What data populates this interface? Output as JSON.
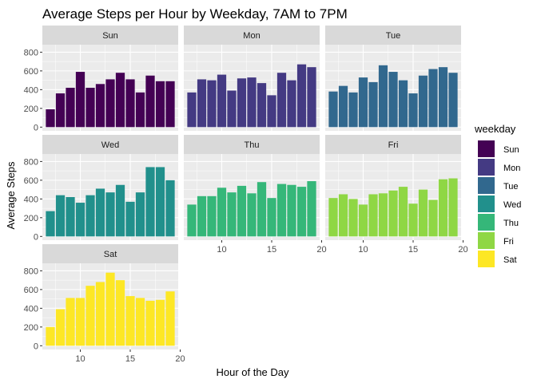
{
  "chart_data": {
    "type": "bar",
    "title": "Average Steps per Hour by Weekday, 7AM to 7PM",
    "xlabel": "Hour of the Day",
    "ylabel": "Average Steps",
    "xlim": [
      6.2,
      19.8
    ],
    "ylim": [
      -40,
      880
    ],
    "x_ticks": [
      10,
      15,
      20
    ],
    "y_ticks": [
      0,
      200,
      400,
      600,
      800
    ],
    "grid": true,
    "legend_position": "right",
    "legend_title": "weekday",
    "hours": [
      7,
      8,
      9,
      10,
      11,
      12,
      13,
      14,
      15,
      16,
      17,
      18,
      19
    ],
    "panels": [
      {
        "name": "Sun",
        "color": "#440154",
        "values": [
          190,
          360,
          420,
          590,
          420,
          460,
          510,
          580,
          510,
          370,
          550,
          490,
          490
        ]
      },
      {
        "name": "Mon",
        "color": "#443A83",
        "values": [
          370,
          510,
          500,
          560,
          390,
          520,
          530,
          470,
          340,
          580,
          500,
          670,
          640
        ]
      },
      {
        "name": "Tue",
        "color": "#31688E",
        "values": [
          380,
          440,
          370,
          530,
          480,
          660,
          590,
          500,
          360,
          550,
          620,
          640,
          580
        ]
      },
      {
        "name": "Wed",
        "color": "#21908C",
        "values": [
          270,
          440,
          420,
          360,
          440,
          510,
          470,
          550,
          370,
          470,
          740,
          740,
          600
        ]
      },
      {
        "name": "Thu",
        "color": "#35B779",
        "values": [
          340,
          430,
          430,
          520,
          470,
          540,
          460,
          580,
          410,
          560,
          550,
          530,
          590
        ]
      },
      {
        "name": "Fri",
        "color": "#8FD744",
        "values": [
          410,
          450,
          400,
          340,
          450,
          460,
          490,
          530,
          350,
          500,
          390,
          610,
          620
        ]
      },
      {
        "name": "Sat",
        "color": "#FDE725",
        "values": [
          200,
          390,
          510,
          510,
          640,
          680,
          780,
          700,
          530,
          510,
          480,
          490,
          580
        ]
      }
    ]
  }
}
